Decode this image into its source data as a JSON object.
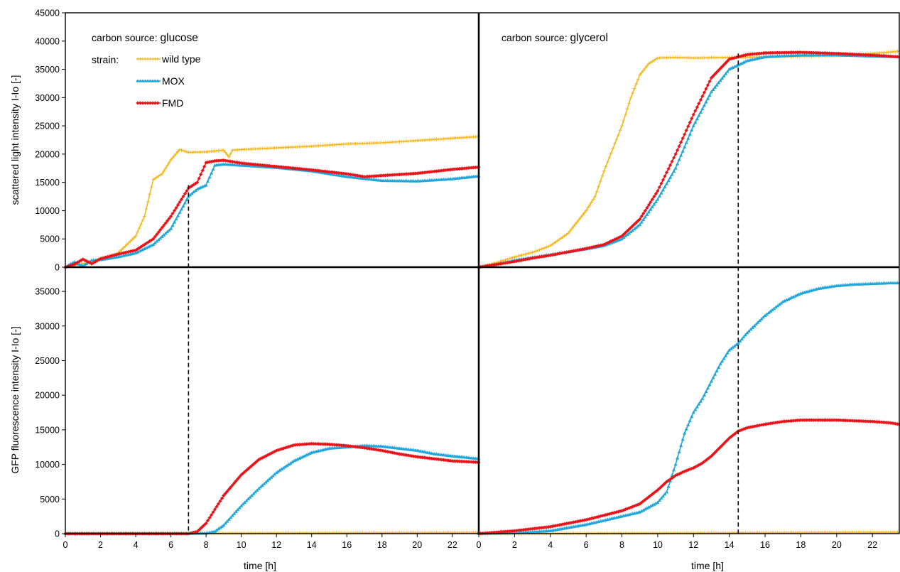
{
  "chart_data": {
    "type": "line",
    "legend": {
      "title": "strain:",
      "placement": "top-left",
      "entries": [
        "wild type",
        "MOX",
        "FMD"
      ]
    },
    "colors": {
      "wild type": "#f2b81e",
      "MOX": "#1fa6dc",
      "FMD": "#e8141a",
      "frame": "#000000",
      "dashed": "#000000"
    },
    "x_axis": {
      "label": "time   [h]",
      "range": [
        0,
        23.5
      ],
      "ticks": [
        0,
        2,
        4,
        6,
        8,
        10,
        12,
        14,
        16,
        18,
        20,
        22
      ]
    },
    "rows": [
      {
        "ylabel": "scattered light intensity   I-Io   [-]",
        "ylim": [
          0,
          45000
        ],
        "yticks": [
          0,
          5000,
          10000,
          15000,
          20000,
          25000,
          30000,
          35000,
          40000,
          45000
        ]
      },
      {
        "ylabel": "GFP fluorescence intensity   I-Io   [-]",
        "ylim": [
          0,
          38500
        ],
        "yticks": [
          0,
          5000,
          10000,
          15000,
          20000,
          25000,
          30000,
          35000
        ]
      }
    ],
    "panels": [
      {
        "id": "glucose-scatter",
        "row": 0,
        "col": 0,
        "annotation_prefix": "carbon source: ",
        "annotation_value": "glucose",
        "show_legend": true,
        "dashed_x": 7,
        "dashed_y_top": 14500,
        "series": [
          {
            "name": "wild type",
            "x": [
              0,
              1,
              2,
              3,
              4,
              4.5,
              5,
              5.5,
              6,
              6.5,
              7,
              8,
              9,
              9.3,
              9.5,
              10,
              12,
              14,
              16,
              18,
              20,
              22,
              23.5
            ],
            "y": [
              0,
              600,
              1500,
              2500,
              5500,
              9000,
              15500,
              16500,
              19000,
              20800,
              20300,
              20400,
              20700,
              19500,
              20700,
              20800,
              21100,
              21400,
              21800,
              22000,
              22400,
              22800,
              23100
            ]
          },
          {
            "name": "MOX",
            "x": [
              0,
              0.5,
              1,
              1.5,
              2,
              3,
              4,
              5,
              6,
              7,
              7.5,
              8,
              8.5,
              9,
              10,
              12,
              14,
              16,
              18,
              20,
              22,
              23.5
            ],
            "y": [
              0,
              900,
              200,
              1200,
              1300,
              1800,
              2500,
              4000,
              6800,
              12500,
              13800,
              14500,
              18000,
              18200,
              18000,
              17600,
              17000,
              16000,
              15300,
              15200,
              15600,
              16100
            ]
          },
          {
            "name": "FMD",
            "x": [
              0,
              0.5,
              1,
              1.5,
              2,
              3,
              4,
              5,
              6,
              6.5,
              7,
              7.5,
              8,
              8.5,
              9,
              10,
              12,
              14,
              16,
              17,
              18,
              20,
              22,
              23.5
            ],
            "y": [
              0,
              500,
              1400,
              600,
              1500,
              2300,
              3000,
              5000,
              9000,
              11500,
              14000,
              15000,
              18500,
              18800,
              18900,
              18400,
              17800,
              17200,
              16500,
              16000,
              16200,
              16600,
              17300,
              17700
            ]
          }
        ]
      },
      {
        "id": "glycerol-scatter",
        "row": 0,
        "col": 1,
        "annotation_prefix": "carbon source: ",
        "annotation_value": "glycerol",
        "show_legend": false,
        "dashed_x": 14.5,
        "dashed_y_top": 37800,
        "series": [
          {
            "name": "wild type",
            "x": [
              0,
              1,
              2,
              3,
              4,
              5,
              6,
              6.5,
              7,
              7.5,
              8,
              8.5,
              9,
              9.5,
              10,
              11,
              12,
              14,
              16,
              18,
              20,
              22,
              23.5
            ],
            "y": [
              0,
              800,
              1800,
              2600,
              3800,
              6000,
              10000,
              12500,
              17000,
              21000,
              25000,
              30000,
              34000,
              36000,
              37000,
              37100,
              37000,
              37100,
              37200,
              37300,
              37400,
              37800,
              38200
            ]
          },
          {
            "name": "MOX",
            "x": [
              0,
              1,
              2,
              3,
              4,
              5,
              6,
              7,
              8,
              9,
              10,
              11,
              12,
              13,
              14,
              15,
              16,
              18,
              20,
              22,
              23.5
            ],
            "y": [
              0,
              500,
              1200,
              1700,
              2200,
              2700,
              3200,
              3800,
              5000,
              7500,
              12000,
              17500,
              25000,
              31000,
              35000,
              36500,
              37200,
              37500,
              37500,
              37300,
              37200
            ]
          },
          {
            "name": "FMD",
            "x": [
              0,
              1,
              2,
              3,
              4,
              5,
              6,
              7,
              8,
              9,
              10,
              11,
              12,
              13,
              14,
              15,
              16,
              18,
              20,
              22,
              23.5
            ],
            "y": [
              0,
              500,
              1000,
              1600,
              2100,
              2700,
              3300,
              4000,
              5500,
              8500,
              13500,
              20000,
              27000,
              33500,
              36800,
              37600,
              37900,
              38000,
              37800,
              37500,
              37200
            ]
          }
        ]
      },
      {
        "id": "glucose-gfp",
        "row": 1,
        "col": 0,
        "show_legend": false,
        "dashed_x": 7,
        "dashed_y_top": 38500,
        "series": [
          {
            "name": "wild type",
            "x": [
              0,
              12,
              23.5
            ],
            "y": [
              0,
              80,
              150
            ]
          },
          {
            "name": "MOX",
            "x": [
              0,
              7,
              8,
              8.5,
              9,
              10,
              11,
              12,
              13,
              14,
              15,
              16,
              17,
              18,
              19,
              20,
              21,
              22,
              23.5
            ],
            "y": [
              0,
              0,
              50,
              300,
              1200,
              4000,
              6500,
              8800,
              10500,
              11700,
              12300,
              12500,
              12700,
              12600,
              12300,
              12000,
              11500,
              11200,
              10800
            ]
          },
          {
            "name": "FMD",
            "x": [
              0,
              7,
              7.5,
              8,
              8.5,
              9,
              10,
              11,
              12,
              13,
              14,
              15,
              16,
              17,
              18,
              19,
              20,
              21,
              22,
              23.5
            ],
            "y": [
              0,
              0,
              300,
              1500,
              3500,
              5500,
              8500,
              10700,
              12000,
              12800,
              13000,
              12900,
              12700,
              12400,
              12000,
              11500,
              11100,
              10800,
              10500,
              10300
            ]
          }
        ]
      },
      {
        "id": "glycerol-gfp",
        "row": 1,
        "col": 1,
        "show_legend": false,
        "dashed_x": 14.5,
        "dashed_y_top": 38500,
        "series": [
          {
            "name": "wild type",
            "x": [
              0,
              12,
              23.5
            ],
            "y": [
              0,
              100,
              200
            ]
          },
          {
            "name": "MOX",
            "x": [
              0,
              2,
              4,
              6,
              8,
              9,
              10,
              10.5,
              11,
              11.5,
              12,
              12.5,
              13,
              13.5,
              14,
              14.5,
              15,
              16,
              17,
              18,
              19,
              20,
              21,
              22,
              23,
              23.5
            ],
            "y": [
              0,
              80,
              400,
              1300,
              2500,
              3100,
              4500,
              6000,
              10000,
              14500,
              17500,
              19500,
              22000,
              24500,
              26500,
              27500,
              29000,
              31500,
              33500,
              34700,
              35400,
              35800,
              36000,
              36100,
              36200,
              36200
            ]
          },
          {
            "name": "FMD",
            "x": [
              0,
              2,
              4,
              6,
              8,
              9,
              10,
              10.5,
              11,
              11.5,
              12,
              12.5,
              13,
              14,
              14.5,
              15,
              16,
              17,
              18,
              19,
              20,
              21,
              22,
              23,
              23.5
            ],
            "y": [
              0,
              400,
              1000,
              2000,
              3300,
              4300,
              6300,
              7500,
              8400,
              9000,
              9500,
              10200,
              11200,
              13800,
              14800,
              15300,
              15800,
              16200,
              16400,
              16400,
              16400,
              16300,
              16200,
              16000,
              15800
            ]
          }
        ]
      }
    ]
  }
}
